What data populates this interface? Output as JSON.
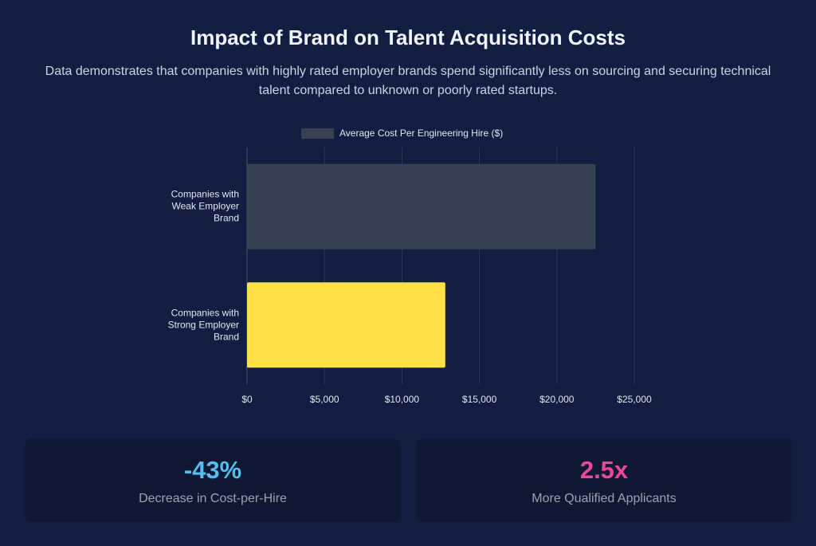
{
  "chart_data": {
    "type": "hbar",
    "title": "Impact of Brand on Talent Acquisition Costs",
    "subtitle": "Data demonstrates that companies with highly rated employer brands spend significantly less on sourcing and securing technical talent compared to unknown or poorly rated startups.",
    "categories": [
      "Companies with Weak Employer Brand",
      "Companies with Strong Employer Brand"
    ],
    "series": [
      {
        "name": "Average Cost Per Engineering Hire ($)",
        "color": "#374151",
        "values": [
          22500,
          12800
        ]
      }
    ],
    "bar_colors": [
      "#374151",
      "#fde047"
    ],
    "xlim": [
      0,
      25000
    ],
    "xticks": [
      {
        "value": 0,
        "label": "$0"
      },
      {
        "value": 5000,
        "label": "$5,000"
      },
      {
        "value": 10000,
        "label": "$10,000"
      },
      {
        "value": 15000,
        "label": "$15,000"
      },
      {
        "value": 20000,
        "label": "$20,000"
      },
      {
        "value": 25000,
        "label": "$25,000"
      }
    ],
    "grid": true
  },
  "stats": [
    {
      "value": "-43%",
      "label": "Decrease in Cost-per-Hire",
      "color": "#56bdf0"
    },
    {
      "value": "2.5x",
      "label": "More Qualified Applicants",
      "color": "#ec4899"
    }
  ]
}
